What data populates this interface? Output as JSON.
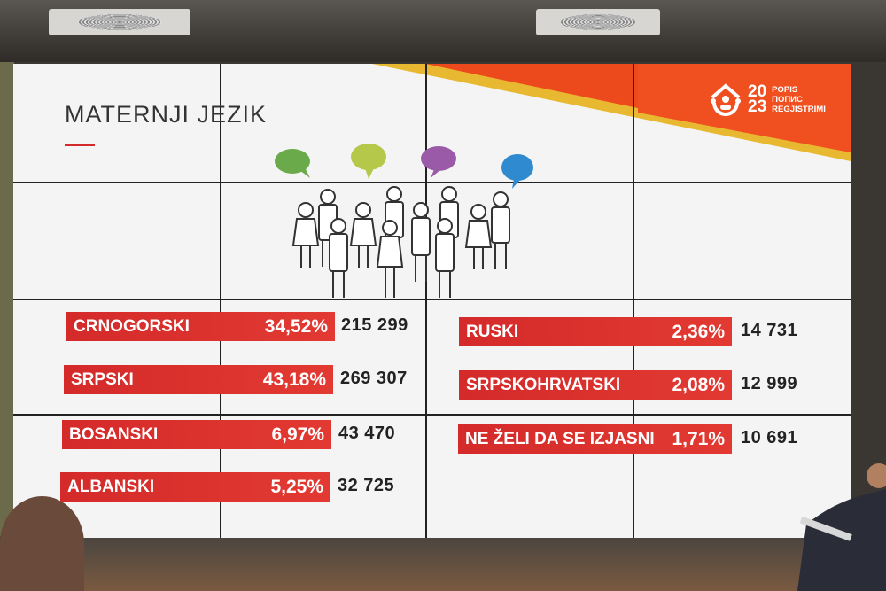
{
  "slide": {
    "title": "MATERNJI JEZIK",
    "logo": {
      "year_top": "20",
      "year_bottom": "23",
      "words": [
        "POPIS",
        "ПОПИС",
        "REGJISTRIMI"
      ]
    },
    "colors": {
      "accent_red": "#d42a2a",
      "corner_orange": "#ec4a1c",
      "stripe_yellow": "#e8b830"
    },
    "speech_bubble_colors": [
      "#6aaa4a",
      "#b5c84a",
      "#9a5aa8",
      "#2f8ad0"
    ],
    "languages_left": [
      {
        "name": "CRNOGORSKI",
        "percent": "34,52%",
        "count": "215 299"
      },
      {
        "name": "SRPSKI",
        "percent": "43,18%",
        "count": "269 307"
      },
      {
        "name": "BOSANSKI",
        "percent": "6,97%",
        "count": "43 470"
      },
      {
        "name": "ALBANSKI",
        "percent": "5,25%",
        "count": "32 725"
      }
    ],
    "languages_right": [
      {
        "name": "RUSKI",
        "percent": "2,36%",
        "count": "14 731"
      },
      {
        "name": "SRPSKOHRVATSKI",
        "percent": "2,08%",
        "count": "12 999"
      },
      {
        "name": "NE ŽELI DA SE IZJASNI",
        "percent": "1,71%",
        "count": "10 691"
      }
    ]
  }
}
